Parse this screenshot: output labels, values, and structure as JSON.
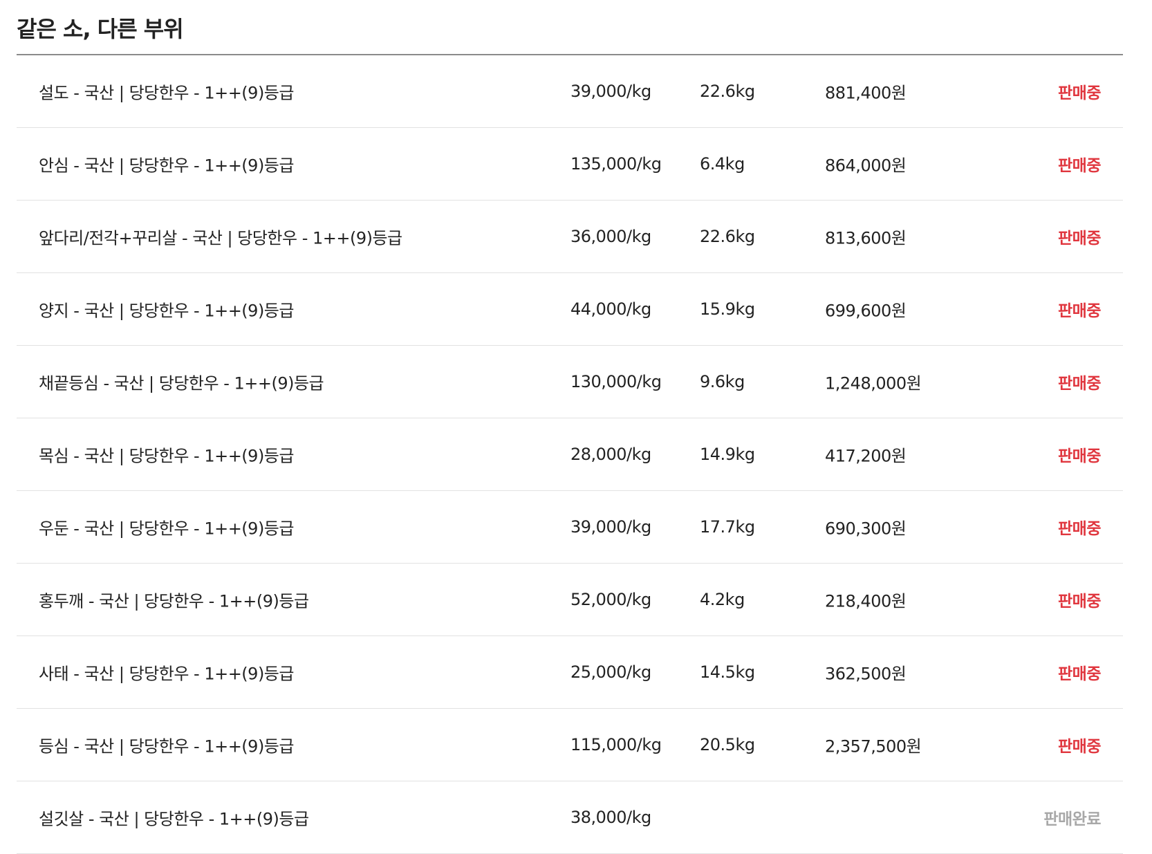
{
  "section": {
    "title": "같은 소, 다른 부위"
  },
  "colors": {
    "on_sale": "#e0363e",
    "sold_out": "#a8a8a8"
  },
  "items": [
    {
      "name": "설도 - 국산 | 당당한우 - 1++(9)등급",
      "price": "39,000/kg",
      "weight": "22.6kg",
      "total": "881,400원",
      "status": "판매중",
      "available": true
    },
    {
      "name": "안심 - 국산 | 당당한우 - 1++(9)등급",
      "price": "135,000/kg",
      "weight": "6.4kg",
      "total": "864,000원",
      "status": "판매중",
      "available": true
    },
    {
      "name": "앞다리/전각+꾸리살 - 국산 | 당당한우 - 1++(9)등급",
      "price": "36,000/kg",
      "weight": "22.6kg",
      "total": "813,600원",
      "status": "판매중",
      "available": true
    },
    {
      "name": "양지 - 국산 | 당당한우 - 1++(9)등급",
      "price": "44,000/kg",
      "weight": "15.9kg",
      "total": "699,600원",
      "status": "판매중",
      "available": true
    },
    {
      "name": "채끝등심 - 국산 | 당당한우 - 1++(9)등급",
      "price": "130,000/kg",
      "weight": "9.6kg",
      "total": "1,248,000원",
      "status": "판매중",
      "available": true
    },
    {
      "name": "목심 - 국산 | 당당한우 - 1++(9)등급",
      "price": "28,000/kg",
      "weight": "14.9kg",
      "total": "417,200원",
      "status": "판매중",
      "available": true
    },
    {
      "name": "우둔 - 국산 | 당당한우 - 1++(9)등급",
      "price": "39,000/kg",
      "weight": "17.7kg",
      "total": "690,300원",
      "status": "판매중",
      "available": true
    },
    {
      "name": "홍두깨 - 국산 | 당당한우 - 1++(9)등급",
      "price": "52,000/kg",
      "weight": "4.2kg",
      "total": "218,400원",
      "status": "판매중",
      "available": true
    },
    {
      "name": "사태 - 국산 | 당당한우 - 1++(9)등급",
      "price": "25,000/kg",
      "weight": "14.5kg",
      "total": "362,500원",
      "status": "판매중",
      "available": true
    },
    {
      "name": "등심 - 국산 | 당당한우 - 1++(9)등급",
      "price": "115,000/kg",
      "weight": "20.5kg",
      "total": "2,357,500원",
      "status": "판매중",
      "available": true
    },
    {
      "name": "설깃살 - 국산 | 당당한우 - 1++(9)등급",
      "price": "38,000/kg",
      "weight": "",
      "total": "",
      "status": "판매완료",
      "available": false
    }
  ]
}
